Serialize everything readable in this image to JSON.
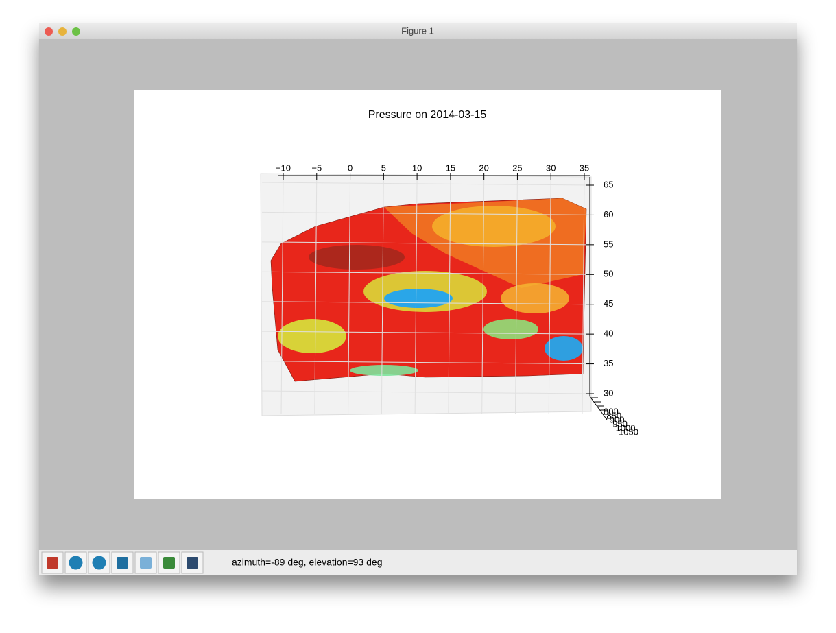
{
  "window": {
    "title": "Figure 1"
  },
  "figure": {
    "title": "Pressure on 2014-03-15",
    "xticks": [
      {
        "value": -10,
        "label": "−10"
      },
      {
        "value": -5,
        "label": "−5"
      },
      0,
      5,
      10,
      15,
      20,
      25,
      30,
      35
    ],
    "yticks": [
      30,
      35,
      40,
      45,
      50,
      55,
      60,
      65
    ],
    "zticks": [
      800,
      850,
      900,
      950,
      1000,
      1050
    ]
  },
  "toolbar": {
    "status": "azimuth=-89 deg, elevation=93 deg"
  }
}
